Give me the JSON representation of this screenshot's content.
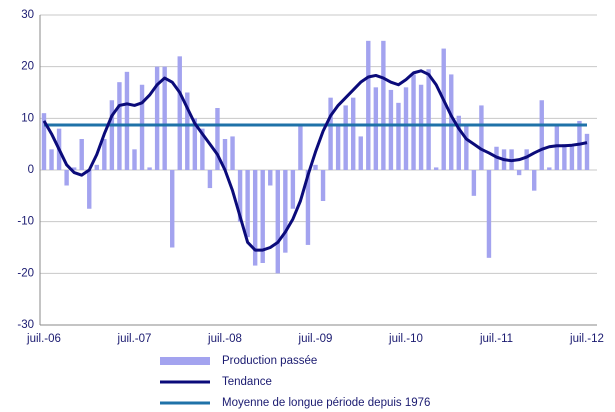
{
  "chart_data": {
    "type": "bar",
    "categories": [
      "juil.-06",
      null,
      null,
      null,
      null,
      null,
      null,
      null,
      null,
      null,
      null,
      null,
      "juil.-07",
      null,
      null,
      null,
      null,
      null,
      null,
      null,
      null,
      null,
      null,
      null,
      "juil.-08",
      null,
      null,
      null,
      null,
      null,
      null,
      null,
      null,
      null,
      null,
      null,
      "juil.-09",
      null,
      null,
      null,
      null,
      null,
      null,
      null,
      null,
      null,
      null,
      null,
      "juil.-10",
      null,
      null,
      null,
      null,
      null,
      null,
      null,
      null,
      null,
      null,
      null,
      "juil.-11",
      null,
      null,
      null,
      null,
      null,
      null,
      null,
      null,
      null,
      null,
      null,
      "juil.-12"
    ],
    "series": [
      {
        "name": "Production passée",
        "type": "bar",
        "color": "#a3a3ef",
        "values": [
          11,
          4,
          8,
          -3,
          0.5,
          6,
          -7.5,
          1,
          6,
          13.5,
          17,
          19,
          4,
          16.5,
          0.5,
          20,
          20,
          -15,
          22,
          15,
          10,
          8,
          -3.5,
          12,
          6,
          6.5,
          -10,
          -13,
          -18.5,
          -18,
          -3,
          -20,
          -16,
          -7.5,
          8.5,
          -14.5,
          1,
          -6,
          14,
          9,
          12.5,
          14,
          6.5,
          25,
          16,
          25,
          15.5,
          13,
          16,
          18.5,
          16.5,
          19.5,
          0.5,
          23.5,
          18.5,
          10.5,
          9,
          -5,
          12.5,
          -17,
          4.5,
          4,
          4,
          -1,
          4,
          -4,
          13.5,
          0.5,
          8.5,
          5,
          5,
          9.5,
          7
        ]
      },
      {
        "name": "Tendance",
        "type": "line",
        "color": "#0b0b7a",
        "values": [
          9.5,
          7,
          4,
          1,
          -0.5,
          -1,
          0,
          3,
          7,
          10.5,
          12.5,
          12.8,
          12.5,
          13,
          14.5,
          16.5,
          17.8,
          17,
          15,
          12,
          9,
          7,
          5,
          3,
          0,
          -4,
          -9,
          -14,
          -15.5,
          -15.5,
          -15,
          -14,
          -12,
          -9.5,
          -6,
          -1,
          3.5,
          7.5,
          10.5,
          12.5,
          14,
          15.5,
          17,
          18,
          18.3,
          17.8,
          17,
          16.5,
          17.5,
          18.8,
          19.2,
          18.5,
          16.5,
          13.5,
          10.5,
          8,
          6,
          5,
          4,
          3.3,
          2.5,
          2,
          1.8,
          2,
          2.5,
          3.3,
          4,
          4.5,
          4.7,
          4.7,
          4.8,
          5,
          5.3
        ]
      }
    ],
    "reference_line": {
      "name": "Moyenne de longue période depuis 1976",
      "value": 8.7,
      "color": "#1f72a8"
    },
    "ylim": [
      -30,
      30
    ],
    "yticks": [
      -30,
      -20,
      -10,
      0,
      10,
      20,
      30
    ],
    "grid": true
  }
}
